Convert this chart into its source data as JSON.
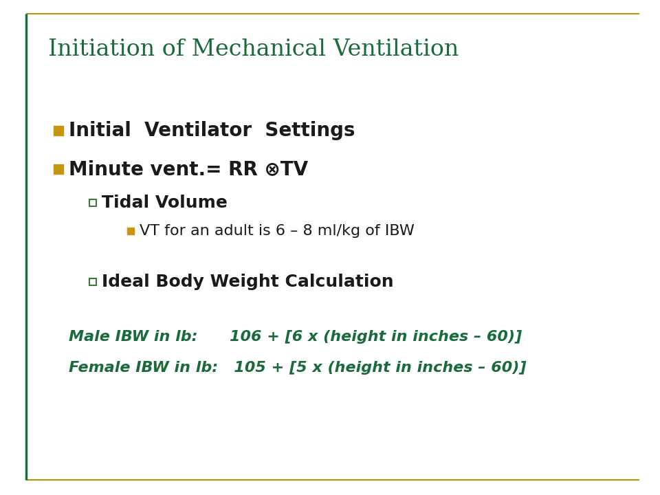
{
  "title": "Initiation of Mechanical Ventilation",
  "title_color": "#1a6b3c",
  "title_fontsize": 24,
  "background_color": "#ffffff",
  "border_color": "#b8960c",
  "bullet_color": "#c8960c",
  "sub_bullet_color": "#3a7a3a",
  "text_color": "#1a1a1a",
  "green_text_color": "#1a6b3c",
  "left_line_color": "#1a6b3c",
  "bullet1": "Initial  Ventilator  Settings",
  "bullet2": "Minute vent.= RR ⊗TV",
  "sub_bullet1": "Tidal Volume",
  "sub_sub_bullet1": "VT for an adult is 6 – 8 ml/kg of IBW",
  "sub_bullet2": "Ideal Body Weight Calculation",
  "formula_male": "Male IBW in lb:      106 + [6 x (height in inches – 60)]",
  "formula_female": "Female IBW in lb:   105 + [5 x (height in inches – 60)]",
  "bullet_fontsize": 20,
  "sub_bullet_fontsize": 18,
  "sub_sub_fontsize": 16,
  "formula_fontsize": 16
}
